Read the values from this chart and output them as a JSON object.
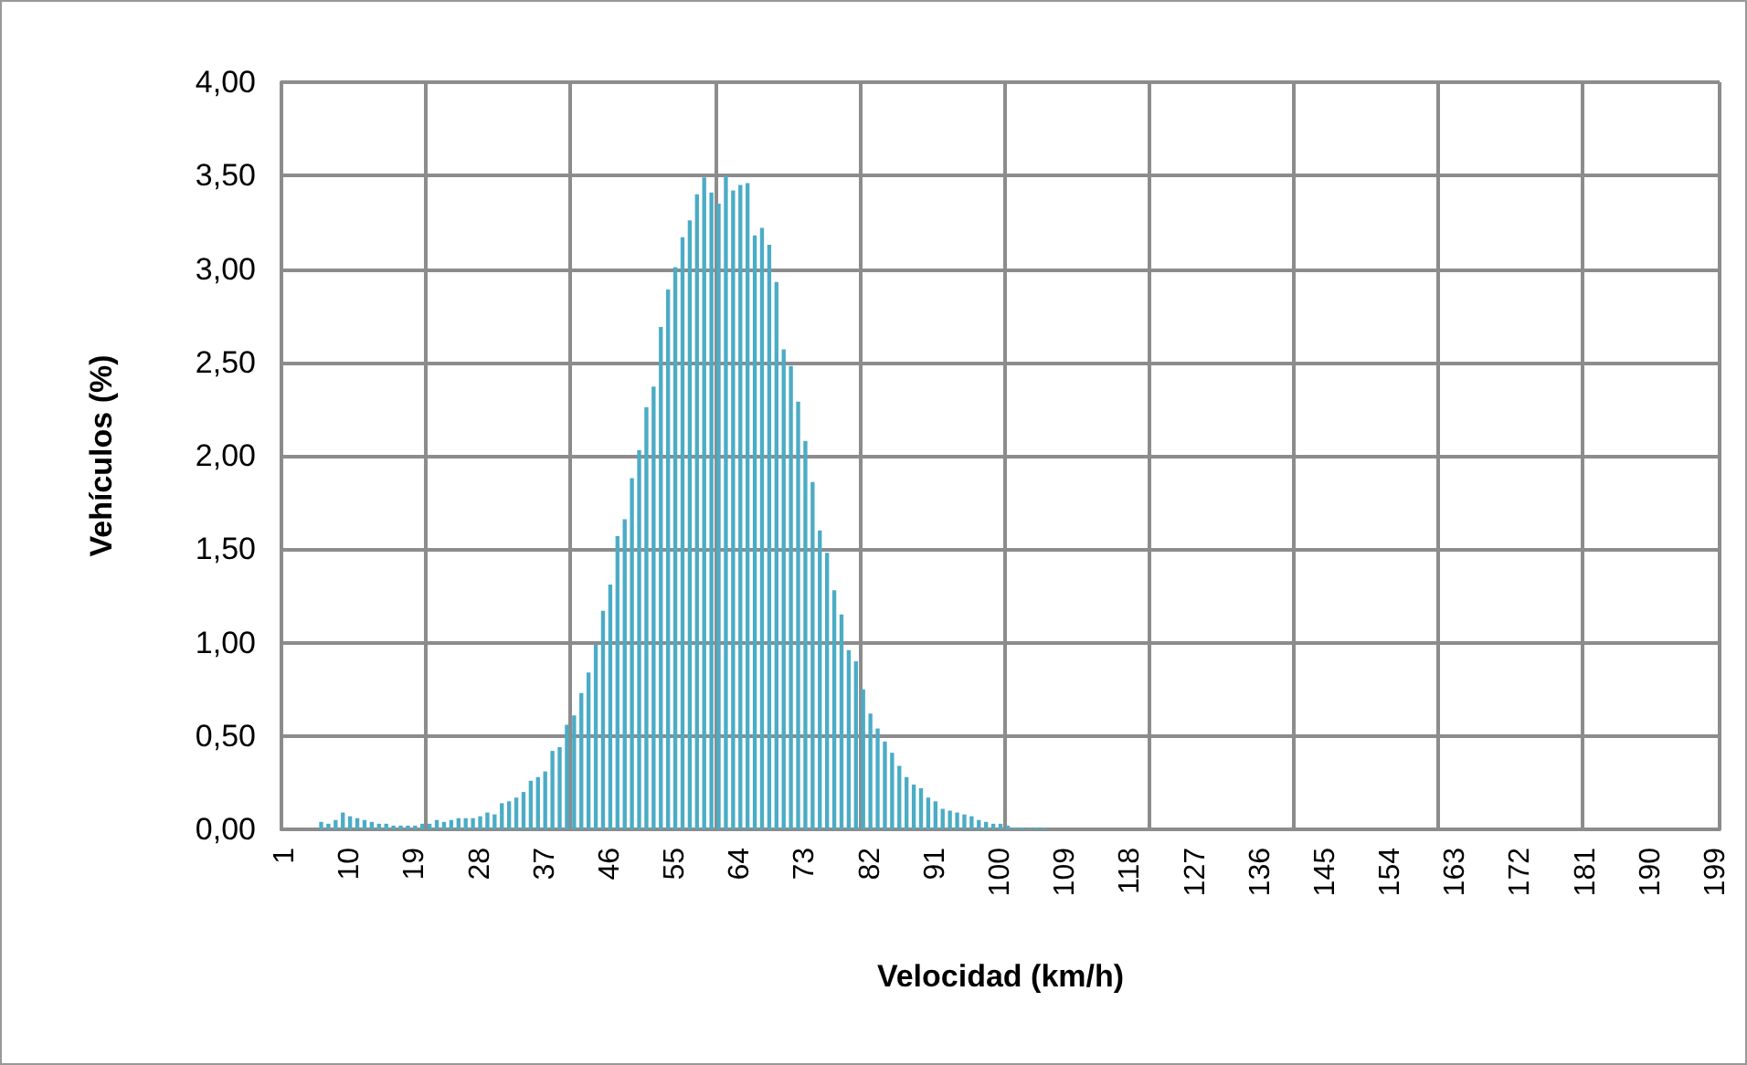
{
  "chart_data": {
    "type": "bar",
    "xlabel": "Velocidad (km/h)",
    "ylabel": "Vehículos (%)",
    "categories": [
      "1",
      null,
      null,
      null,
      null,
      null,
      null,
      null,
      null,
      "10",
      null,
      null,
      null,
      null,
      null,
      null,
      null,
      null,
      "19",
      null,
      null,
      null,
      null,
      null,
      null,
      null,
      null,
      "28",
      null,
      null,
      null,
      null,
      null,
      null,
      null,
      null,
      "37",
      null,
      null,
      null,
      null,
      null,
      null,
      null,
      null,
      "46",
      null,
      null,
      null,
      null,
      null,
      null,
      null,
      null,
      "55",
      null,
      null,
      null,
      null,
      null,
      null,
      null,
      null,
      "64",
      null,
      null,
      null,
      null,
      null,
      null,
      null,
      null,
      "73",
      null,
      null,
      null,
      null,
      null,
      null,
      null,
      null,
      "82",
      null,
      null,
      null,
      null,
      null,
      null,
      null,
      null,
      "91",
      null,
      null,
      null,
      null,
      null,
      null,
      null,
      null,
      "100",
      null,
      null,
      null,
      null,
      null,
      null,
      null,
      null,
      "109",
      null,
      null,
      null,
      null,
      null,
      null,
      null,
      null,
      "118",
      null,
      null,
      null,
      null,
      null,
      null,
      null,
      null,
      "127",
      null,
      null,
      null,
      null,
      null,
      null,
      null,
      null,
      "136",
      null,
      null,
      null,
      null,
      null,
      null,
      null,
      null,
      "145",
      null,
      null,
      null,
      null,
      null,
      null,
      null,
      null,
      "154",
      null,
      null,
      null,
      null,
      null,
      null,
      null,
      null,
      "163",
      null,
      null,
      null,
      null,
      null,
      null,
      null,
      null,
      "172",
      null,
      null,
      null,
      null,
      null,
      null,
      null,
      null,
      "181",
      null,
      null,
      null,
      null,
      null,
      null,
      null,
      null,
      "190",
      null,
      null,
      null,
      null,
      null,
      null,
      null,
      null,
      "199"
    ],
    "series": [
      {
        "color": "#4bacc6",
        "values": [
          0,
          0,
          0,
          0,
          0,
          0.04,
          0.03,
          0.05,
          0.09,
          0.07,
          0.06,
          0.05,
          0.04,
          0.03,
          0.03,
          0.02,
          0.02,
          0.02,
          0.02,
          0.03,
          0.03,
          0.05,
          0.04,
          0.05,
          0.06,
          0.06,
          0.06,
          0.07,
          0.09,
          0.08,
          0.14,
          0.15,
          0.17,
          0.2,
          0.26,
          0.28,
          0.31,
          0.42,
          0.44,
          0.56,
          0.61,
          0.73,
          0.84,
          0.99,
          1.17,
          1.31,
          1.57,
          1.66,
          1.88,
          2.03,
          2.26,
          2.37,
          2.69,
          2.89,
          3.01,
          3.17,
          3.26,
          3.4,
          3.49,
          3.41,
          3.35,
          3.5,
          3.42,
          3.45,
          3.46,
          3.18,
          3.22,
          3.13,
          2.93,
          2.57,
          2.48,
          2.29,
          2.08,
          1.86,
          1.6,
          1.48,
          1.28,
          1.15,
          0.96,
          0.9,
          0.75,
          0.62,
          0.54,
          0.47,
          0.41,
          0.34,
          0.28,
          0.24,
          0.22,
          0.17,
          0.15,
          0.11,
          0.1,
          0.09,
          0.08,
          0.07,
          0.05,
          0.04,
          0.03,
          0.03,
          0.02,
          0.01,
          0.01,
          0.01,
          0.01,
          0.01,
          0,
          0,
          0,
          0,
          0,
          0,
          0,
          0,
          0,
          0,
          0,
          0,
          0,
          0,
          0,
          0,
          0,
          0,
          0,
          0,
          0,
          0,
          0,
          0,
          0,
          0,
          0,
          0,
          0,
          0,
          0,
          0,
          0,
          0,
          0,
          0,
          0,
          0,
          0,
          0,
          0,
          0,
          0,
          0,
          0,
          0,
          0,
          0,
          0,
          0,
          0,
          0,
          0,
          0,
          0,
          0,
          0,
          0,
          0,
          0,
          0,
          0,
          0,
          0,
          0,
          0,
          0,
          0,
          0,
          0,
          0,
          0,
          0,
          0,
          0,
          0,
          0,
          0,
          0,
          0,
          0,
          0,
          0,
          0,
          0,
          0,
          0,
          0,
          0,
          0,
          0,
          0,
          0
        ]
      }
    ],
    "ylim": [
      0,
      4
    ],
    "yticks": [
      {
        "value": 0,
        "label": "0,00"
      },
      {
        "value": 0.5,
        "label": "0,50"
      },
      {
        "value": 1,
        "label": "1,00"
      },
      {
        "value": 1.5,
        "label": "1,50"
      },
      {
        "value": 2,
        "label": "2,00"
      },
      {
        "value": 2.5,
        "label": "2,50"
      },
      {
        "value": 3,
        "label": "3,00"
      },
      {
        "value": 3.5,
        "label": "3,50"
      },
      {
        "value": 4,
        "label": "4,00"
      }
    ],
    "grid": true
  }
}
